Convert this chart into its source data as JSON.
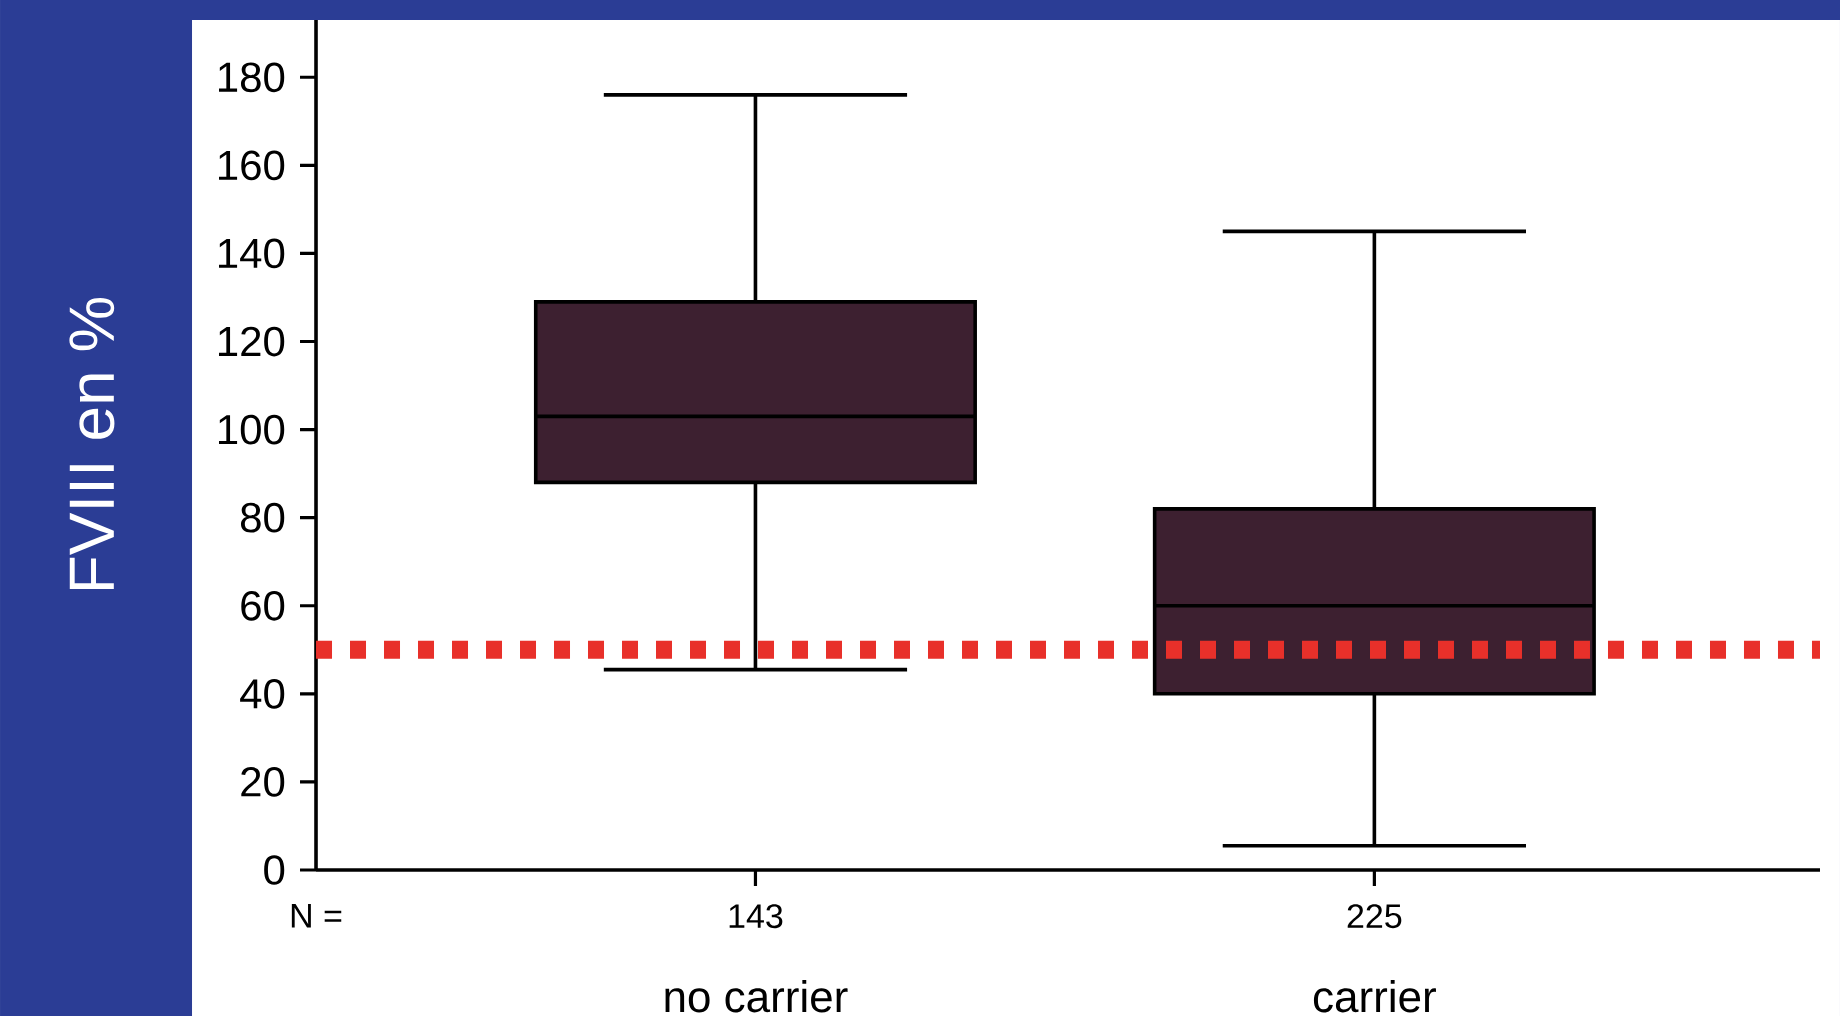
{
  "chart_data": {
    "type": "box",
    "ylabel": "FVIII en %",
    "categories": [
      "no carrier",
      "carrier"
    ],
    "boxes": [
      {
        "low": 45.5,
        "q1": 88,
        "median": 103,
        "q3": 129,
        "high": 176
      },
      {
        "low": 5.5,
        "q1": 40,
        "median": 60,
        "q3": 82,
        "high": 145
      }
    ],
    "color": "#3d2030",
    "ylim": [
      0,
      193
    ],
    "yticks": [
      0,
      20,
      40,
      60,
      80,
      100,
      120,
      140,
      160,
      180
    ],
    "grid": false,
    "ref_lines": [
      {
        "axis": "y",
        "value": 50,
        "color": "#e8302a",
        "line_style": "dotted"
      }
    ],
    "annotations": [
      "N =",
      "143",
      "225"
    ]
  }
}
